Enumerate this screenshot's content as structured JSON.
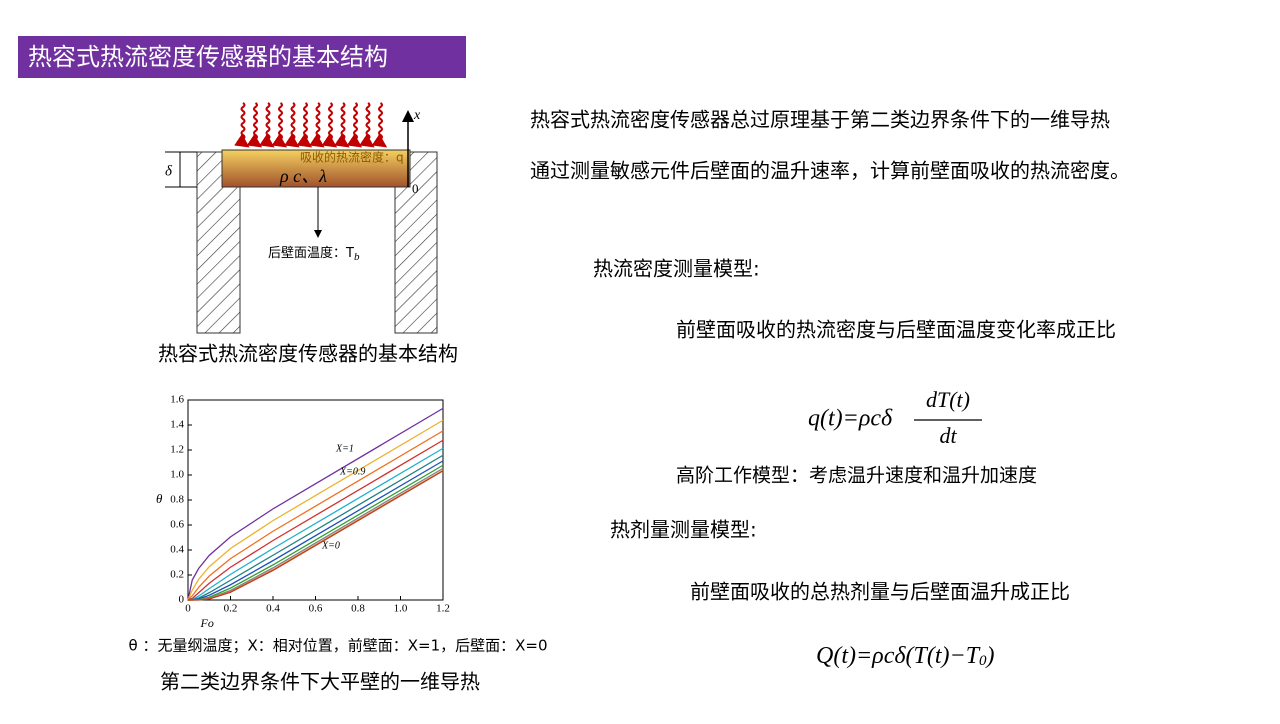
{
  "header": {
    "title": "热容式热流密度传感器的基本结构"
  },
  "diagram": {
    "flux_label": "吸收的热流密度：q",
    "properties": "ρ c、λ",
    "thickness": "δ",
    "axis": "x",
    "origin": "0",
    "back_temp": "后壁面温度：T",
    "back_temp_sub": "b",
    "caption": "热容式热流密度传感器的基本结构"
  },
  "chart_data": {
    "type": "line",
    "x_label": "Fo",
    "y_label": "θ",
    "x": [
      0,
      0.02,
      0.05,
      0.1,
      0.2,
      0.4,
      1.2
    ],
    "series": [
      {
        "color": "#7030a0",
        "values": [
          0,
          0.16,
          0.252,
          0.357,
          0.505,
          0.729,
          1.533
        ]
      },
      {
        "color": "#f0b030",
        "values": [
          0,
          0.079,
          0.165,
          0.266,
          0.412,
          0.635,
          1.438
        ]
      },
      {
        "color": "#f07020",
        "values": [
          0,
          0.033,
          0.101,
          0.192,
          0.331,
          0.55,
          1.353
        ]
      },
      {
        "color": "#d03030",
        "values": [
          0,
          0.012,
          0.058,
          0.134,
          0.262,
          0.476,
          1.278
        ]
      },
      {
        "color": "#20b0d0",
        "values": [
          0,
          0.003,
          0.031,
          0.091,
          0.205,
          0.412,
          1.213
        ]
      },
      {
        "color": "#208080",
        "values": [
          0,
          0.001,
          0.015,
          0.059,
          0.158,
          0.358,
          1.158
        ]
      },
      {
        "color": "#2050c0",
        "values": [
          0,
          0,
          0.008,
          0.038,
          0.122,
          0.315,
          1.113
        ]
      },
      {
        "color": "#30a030",
        "values": [
          0,
          0,
          0.003,
          0.022,
          0.095,
          0.281,
          1.078
        ]
      },
      {
        "color": "#808080",
        "values": [
          0,
          0,
          0.001,
          0.014,
          0.076,
          0.257,
          1.053
        ]
      },
      {
        "color": "#e08040",
        "values": [
          0,
          0,
          0.001,
          0.01,
          0.065,
          0.242,
          1.038
        ]
      },
      {
        "color": "#c04020",
        "values": [
          0,
          0,
          0,
          0.008,
          0.062,
          0.237,
          1.033
        ]
      }
    ],
    "annotations": [
      "X=1",
      "X=0.9",
      "X=0"
    ],
    "xlim": [
      0,
      1.2
    ],
    "ylim": [
      0,
      1.6
    ],
    "xticks": [
      0,
      0.2,
      0.4,
      0.6,
      0.8,
      {
        "value": 1,
        "label": "1.0"
      },
      1.2
    ],
    "yticks": [
      0,
      0.2,
      0.4,
      0.6,
      0.8,
      {
        "value": 1,
        "label": "1.0"
      },
      1.2,
      1.4,
      1.6
    ]
  },
  "chart_caption": {
    "note": "θ ：无量纲温度；X：相对位置，前壁面：X=1，后壁面：X=0",
    "caption": "第二类边界条件下大平壁的一维导热"
  },
  "text": {
    "principle_1": "热容式热流密度传感器总过原理基于第二类边界条件下的一维导热",
    "principle_2": "通过测量敏感元件后壁面的温升速率，计算前壁面吸收的热流密度。",
    "flux_model": "热流密度测量模型:",
    "flux_statement": "前壁面吸收的热流密度与后壁面温度变化率成正比",
    "formula1": {
      "lhs": "q(t)=ρcδ",
      "numerator": "dT(t)",
      "denominator": "dt"
    },
    "higher_order": "高阶工作模型：考虑温升速度和温升加速度",
    "dose_model": "热剂量测量模型:",
    "dose_statement": "前壁面吸收的总热剂量与后壁面温升成正比",
    "formula2": {
      "main": "Q(t)=ρcδ(T(t)−T",
      "subscript": "0",
      "close": ")"
    }
  }
}
